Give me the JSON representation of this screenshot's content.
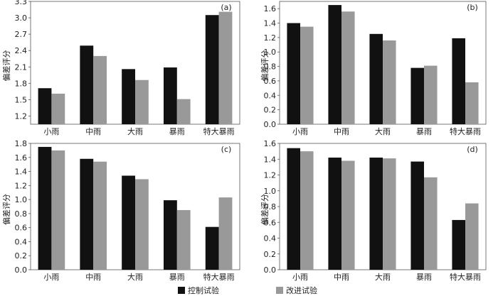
{
  "chart_data": [
    {
      "type": "bar",
      "panel_label": "(a)",
      "ylabel": "偏差评分",
      "categories": [
        "小雨",
        "中雨",
        "大雨",
        "暴雨",
        "特大暴雨"
      ],
      "ylim": [
        1.05,
        3.3
      ],
      "yticks": [
        "1.2",
        "1.5",
        "1.8",
        "2.1",
        "2.4",
        "2.7",
        "3.0",
        "3.3"
      ],
      "series": [
        {
          "name": "控制试验",
          "color": "#111111",
          "values": [
            1.71,
            2.49,
            2.06,
            2.09,
            3.05
          ]
        },
        {
          "name": "改进试验",
          "color": "#999999",
          "values": [
            1.61,
            2.3,
            1.86,
            1.51,
            3.11
          ]
        }
      ]
    },
    {
      "type": "bar",
      "panel_label": "(b)",
      "ylabel": "偏差评分",
      "categories": [
        "小雨",
        "中雨",
        "大雨",
        "暴雨",
        "特大暴雨"
      ],
      "ylim": [
        0,
        1.7
      ],
      "yticks": [
        "0.0",
        "0.2",
        "0.4",
        "0.6",
        "0.8",
        "1.0",
        "1.2",
        "1.4",
        "1.6"
      ],
      "series": [
        {
          "name": "控制试验",
          "color": "#111111",
          "values": [
            1.4,
            1.65,
            1.25,
            0.78,
            1.19
          ]
        },
        {
          "name": "改进试验",
          "color": "#999999",
          "values": [
            1.35,
            1.56,
            1.16,
            0.81,
            0.58
          ]
        }
      ]
    },
    {
      "type": "bar",
      "panel_label": "(c)",
      "ylabel": "偏差评分",
      "categories": [
        "小雨",
        "中雨",
        "大雨",
        "暴雨",
        "特大暴雨"
      ],
      "ylim": [
        0,
        1.8
      ],
      "yticks": [
        "0.0",
        "0.2",
        "0.4",
        "0.6",
        "0.8",
        "1.0",
        "1.2",
        "1.4",
        "1.6",
        "1.8"
      ],
      "series": [
        {
          "name": "控制试验",
          "color": "#111111",
          "values": [
            1.75,
            1.58,
            1.34,
            0.99,
            0.61
          ]
        },
        {
          "name": "改进试验",
          "color": "#999999",
          "values": [
            1.7,
            1.54,
            1.29,
            0.85,
            1.03
          ]
        }
      ]
    },
    {
      "type": "bar",
      "panel_label": "(d)",
      "ylabel": "偏差评分",
      "categories": [
        "小雨",
        "中雨",
        "大雨",
        "暴雨",
        "特大暴雨"
      ],
      "ylim": [
        0,
        1.6
      ],
      "yticks": [
        "0.0",
        "0.2",
        "0.4",
        "0.6",
        "0.8",
        "1.0",
        "1.2",
        "1.4",
        "1.6"
      ],
      "series": [
        {
          "name": "控制试验",
          "color": "#111111",
          "values": [
            1.54,
            1.42,
            1.42,
            1.37,
            0.63
          ]
        },
        {
          "name": "改进试验",
          "color": "#999999",
          "values": [
            1.5,
            1.38,
            1.41,
            1.17,
            0.84
          ]
        }
      ]
    }
  ],
  "legend": {
    "placement": "bottom-right",
    "items": [
      {
        "label": "控制试验",
        "color": "#111111"
      },
      {
        "label": "改进试验",
        "color": "#999999"
      }
    ]
  }
}
